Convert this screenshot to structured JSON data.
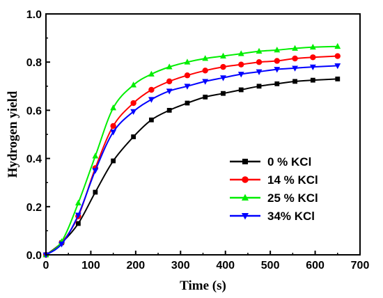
{
  "chart_data": {
    "type": "line",
    "xlabel": "Time (s)",
    "ylabel": "Hydrogen yield",
    "xlim": [
      0,
      700
    ],
    "ylim": [
      0,
      1.0
    ],
    "xticks": [
      0,
      100,
      200,
      300,
      400,
      500,
      600,
      700
    ],
    "yticks": [
      0.0,
      0.2,
      0.4,
      0.6,
      0.8,
      1.0
    ],
    "xtick_labels": [
      "0",
      "100",
      "200",
      "300",
      "400",
      "500",
      "600",
      "700"
    ],
    "ytick_labels": [
      "0.0",
      "0.2",
      "0.4",
      "0.6",
      "0.8",
      "1.0"
    ],
    "grid": false,
    "legend_position": "lower-right",
    "series": [
      {
        "name": "0 % KCl",
        "color": "#000000",
        "marker": "square",
        "x": [
          0,
          35,
          72,
          110,
          150,
          195,
          235,
          275,
          315,
          355,
          395,
          435,
          475,
          515,
          555,
          595,
          650
        ],
        "y": [
          0.0,
          0.05,
          0.13,
          0.26,
          0.39,
          0.49,
          0.56,
          0.6,
          0.63,
          0.655,
          0.67,
          0.685,
          0.7,
          0.71,
          0.72,
          0.725,
          0.73
        ]
      },
      {
        "name": "14 % KCl",
        "color": "#ff0000",
        "marker": "circle",
        "x": [
          0,
          35,
          72,
          110,
          150,
          195,
          235,
          275,
          315,
          355,
          395,
          435,
          475,
          515,
          555,
          595,
          650
        ],
        "y": [
          0.0,
          0.05,
          0.16,
          0.36,
          0.535,
          0.63,
          0.685,
          0.72,
          0.745,
          0.765,
          0.78,
          0.79,
          0.8,
          0.805,
          0.815,
          0.82,
          0.825
        ]
      },
      {
        "name": "25 % KCl",
        "color": "#00ee00",
        "marker": "triangle-up",
        "x": [
          0,
          35,
          72,
          110,
          150,
          195,
          235,
          275,
          315,
          355,
          395,
          435,
          475,
          515,
          555,
          595,
          650
        ],
        "y": [
          0.0,
          0.055,
          0.215,
          0.41,
          0.61,
          0.705,
          0.75,
          0.78,
          0.8,
          0.815,
          0.825,
          0.835,
          0.845,
          0.85,
          0.857,
          0.862,
          0.865
        ]
      },
      {
        "name": "34% KCl",
        "color": "#0000ff",
        "marker": "triangle-down",
        "x": [
          0,
          35,
          72,
          110,
          150,
          195,
          235,
          275,
          315,
          355,
          395,
          435,
          475,
          515,
          555,
          595,
          650
        ],
        "y": [
          0.0,
          0.045,
          0.165,
          0.35,
          0.51,
          0.595,
          0.645,
          0.68,
          0.7,
          0.72,
          0.735,
          0.75,
          0.76,
          0.77,
          0.775,
          0.78,
          0.785
        ]
      }
    ]
  }
}
